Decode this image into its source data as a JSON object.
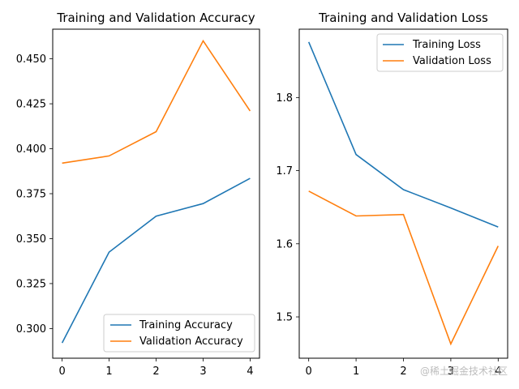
{
  "colors": {
    "training": "#1f77b4",
    "validation": "#ff7f0e"
  },
  "watermark": "@稀土掘金技术社区",
  "chart_data": [
    {
      "type": "line",
      "title": "Training and Validation Accuracy",
      "x": [
        0,
        1,
        2,
        3,
        4
      ],
      "xlim": [
        -0.2,
        4.2
      ],
      "ylim": [
        0.2835,
        0.4665
      ],
      "yticks": [
        0.3,
        0.325,
        0.35,
        0.375,
        0.4,
        0.425,
        0.45
      ],
      "ytick_labels": [
        "0.300",
        "0.325",
        "0.350",
        "0.375",
        "0.400",
        "0.425",
        "0.450"
      ],
      "xticks": [
        0,
        1,
        2,
        3,
        4
      ],
      "xtick_labels": [
        "0",
        "1",
        "2",
        "3",
        "4"
      ],
      "legend_loc": "lower-right",
      "series": [
        {
          "name": "Training Accuracy",
          "color_key": "training",
          "values": [
            0.292,
            0.3425,
            0.3625,
            0.3695,
            0.3835
          ]
        },
        {
          "name": "Validation Accuracy",
          "color_key": "validation",
          "values": [
            0.392,
            0.396,
            0.4095,
            0.46,
            0.421
          ]
        }
      ]
    },
    {
      "type": "line",
      "title": "Training and Validation Loss",
      "x": [
        0,
        1,
        2,
        3,
        4
      ],
      "xlim": [
        -0.2,
        4.2
      ],
      "ylim": [
        1.4435,
        1.8935
      ],
      "yticks": [
        1.5,
        1.6,
        1.7,
        1.8
      ],
      "ytick_labels": [
        "1.5",
        "1.6",
        "1.7",
        "1.8"
      ],
      "xticks": [
        0,
        1,
        2,
        3,
        4
      ],
      "xtick_labels": [
        "0",
        "1",
        "2",
        "3",
        "4"
      ],
      "legend_loc": "upper-right",
      "series": [
        {
          "name": "Training Loss",
          "color_key": "training",
          "values": [
            1.876,
            1.722,
            1.674,
            1.649,
            1.623
          ]
        },
        {
          "name": "Validation Loss",
          "color_key": "validation",
          "values": [
            1.672,
            1.638,
            1.64,
            1.463,
            1.597
          ]
        }
      ]
    }
  ]
}
